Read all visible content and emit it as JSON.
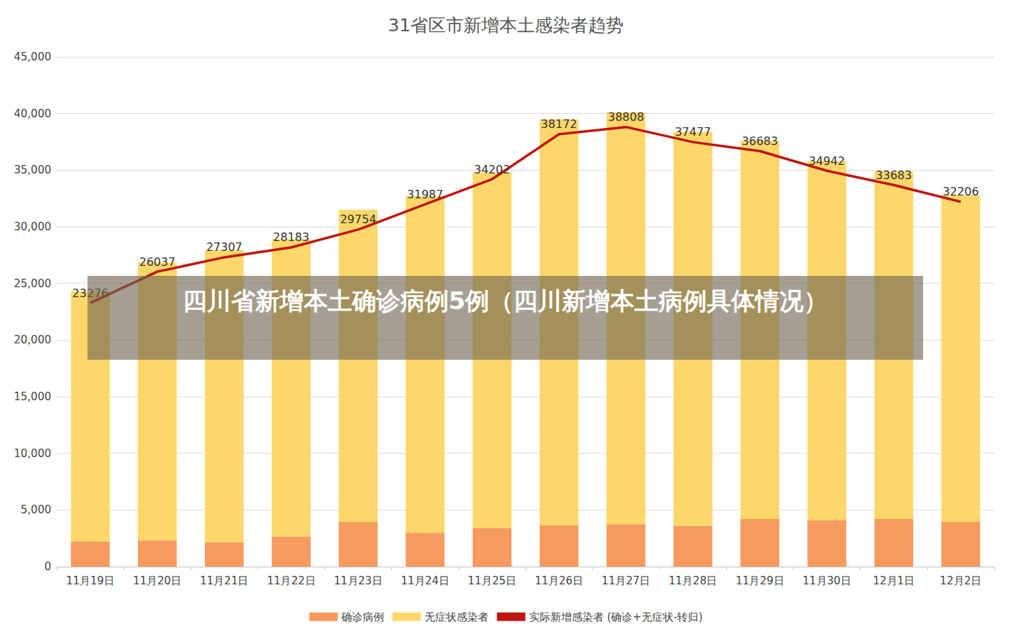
{
  "chart_data": {
    "type": "bar",
    "title": "31省区市新增本土感染者趋势",
    "annotations": [
      "四川省新增本土确诊病例5例（四川新增本土病例具体情况）"
    ],
    "categories": [
      "11月19日",
      "11月20日",
      "11月21日",
      "11月22日",
      "11月23日",
      "11月24日",
      "11月25日",
      "11月26日",
      "11月27日",
      "11月28日",
      "11月29日",
      "11月30日",
      "12月1日",
      "12月2日"
    ],
    "stacked": true,
    "series": [
      {
        "name": "确诊病例",
        "type": "bar",
        "color": "#F79A5E",
        "values": [
          2200,
          2300,
          2150,
          2650,
          3950,
          3000,
          3400,
          3650,
          3750,
          3600,
          4200,
          4100,
          4200,
          3950
        ]
      },
      {
        "name": "无症状感染者",
        "type": "bar",
        "color": "#FDD76A",
        "values": [
          22100,
          24550,
          25800,
          26250,
          27550,
          29700,
          31400,
          35850,
          36350,
          34800,
          33400,
          31700,
          30700,
          28850
        ]
      },
      {
        "name": "实际新增感染者 (确诊+无症状-转归)",
        "type": "line",
        "color": "#C0150F",
        "data_labels": true,
        "values": [
          23276,
          26037,
          27307,
          28183,
          29754,
          31987,
          34202,
          38172,
          38808,
          37477,
          36683,
          34942,
          33683,
          32206
        ]
      }
    ],
    "ylim": [
      0,
      45000
    ],
    "yticks": [
      0,
      5000,
      10000,
      15000,
      20000,
      25000,
      30000,
      35000,
      40000,
      45000
    ],
    "grid": true,
    "legend": "bottom"
  }
}
